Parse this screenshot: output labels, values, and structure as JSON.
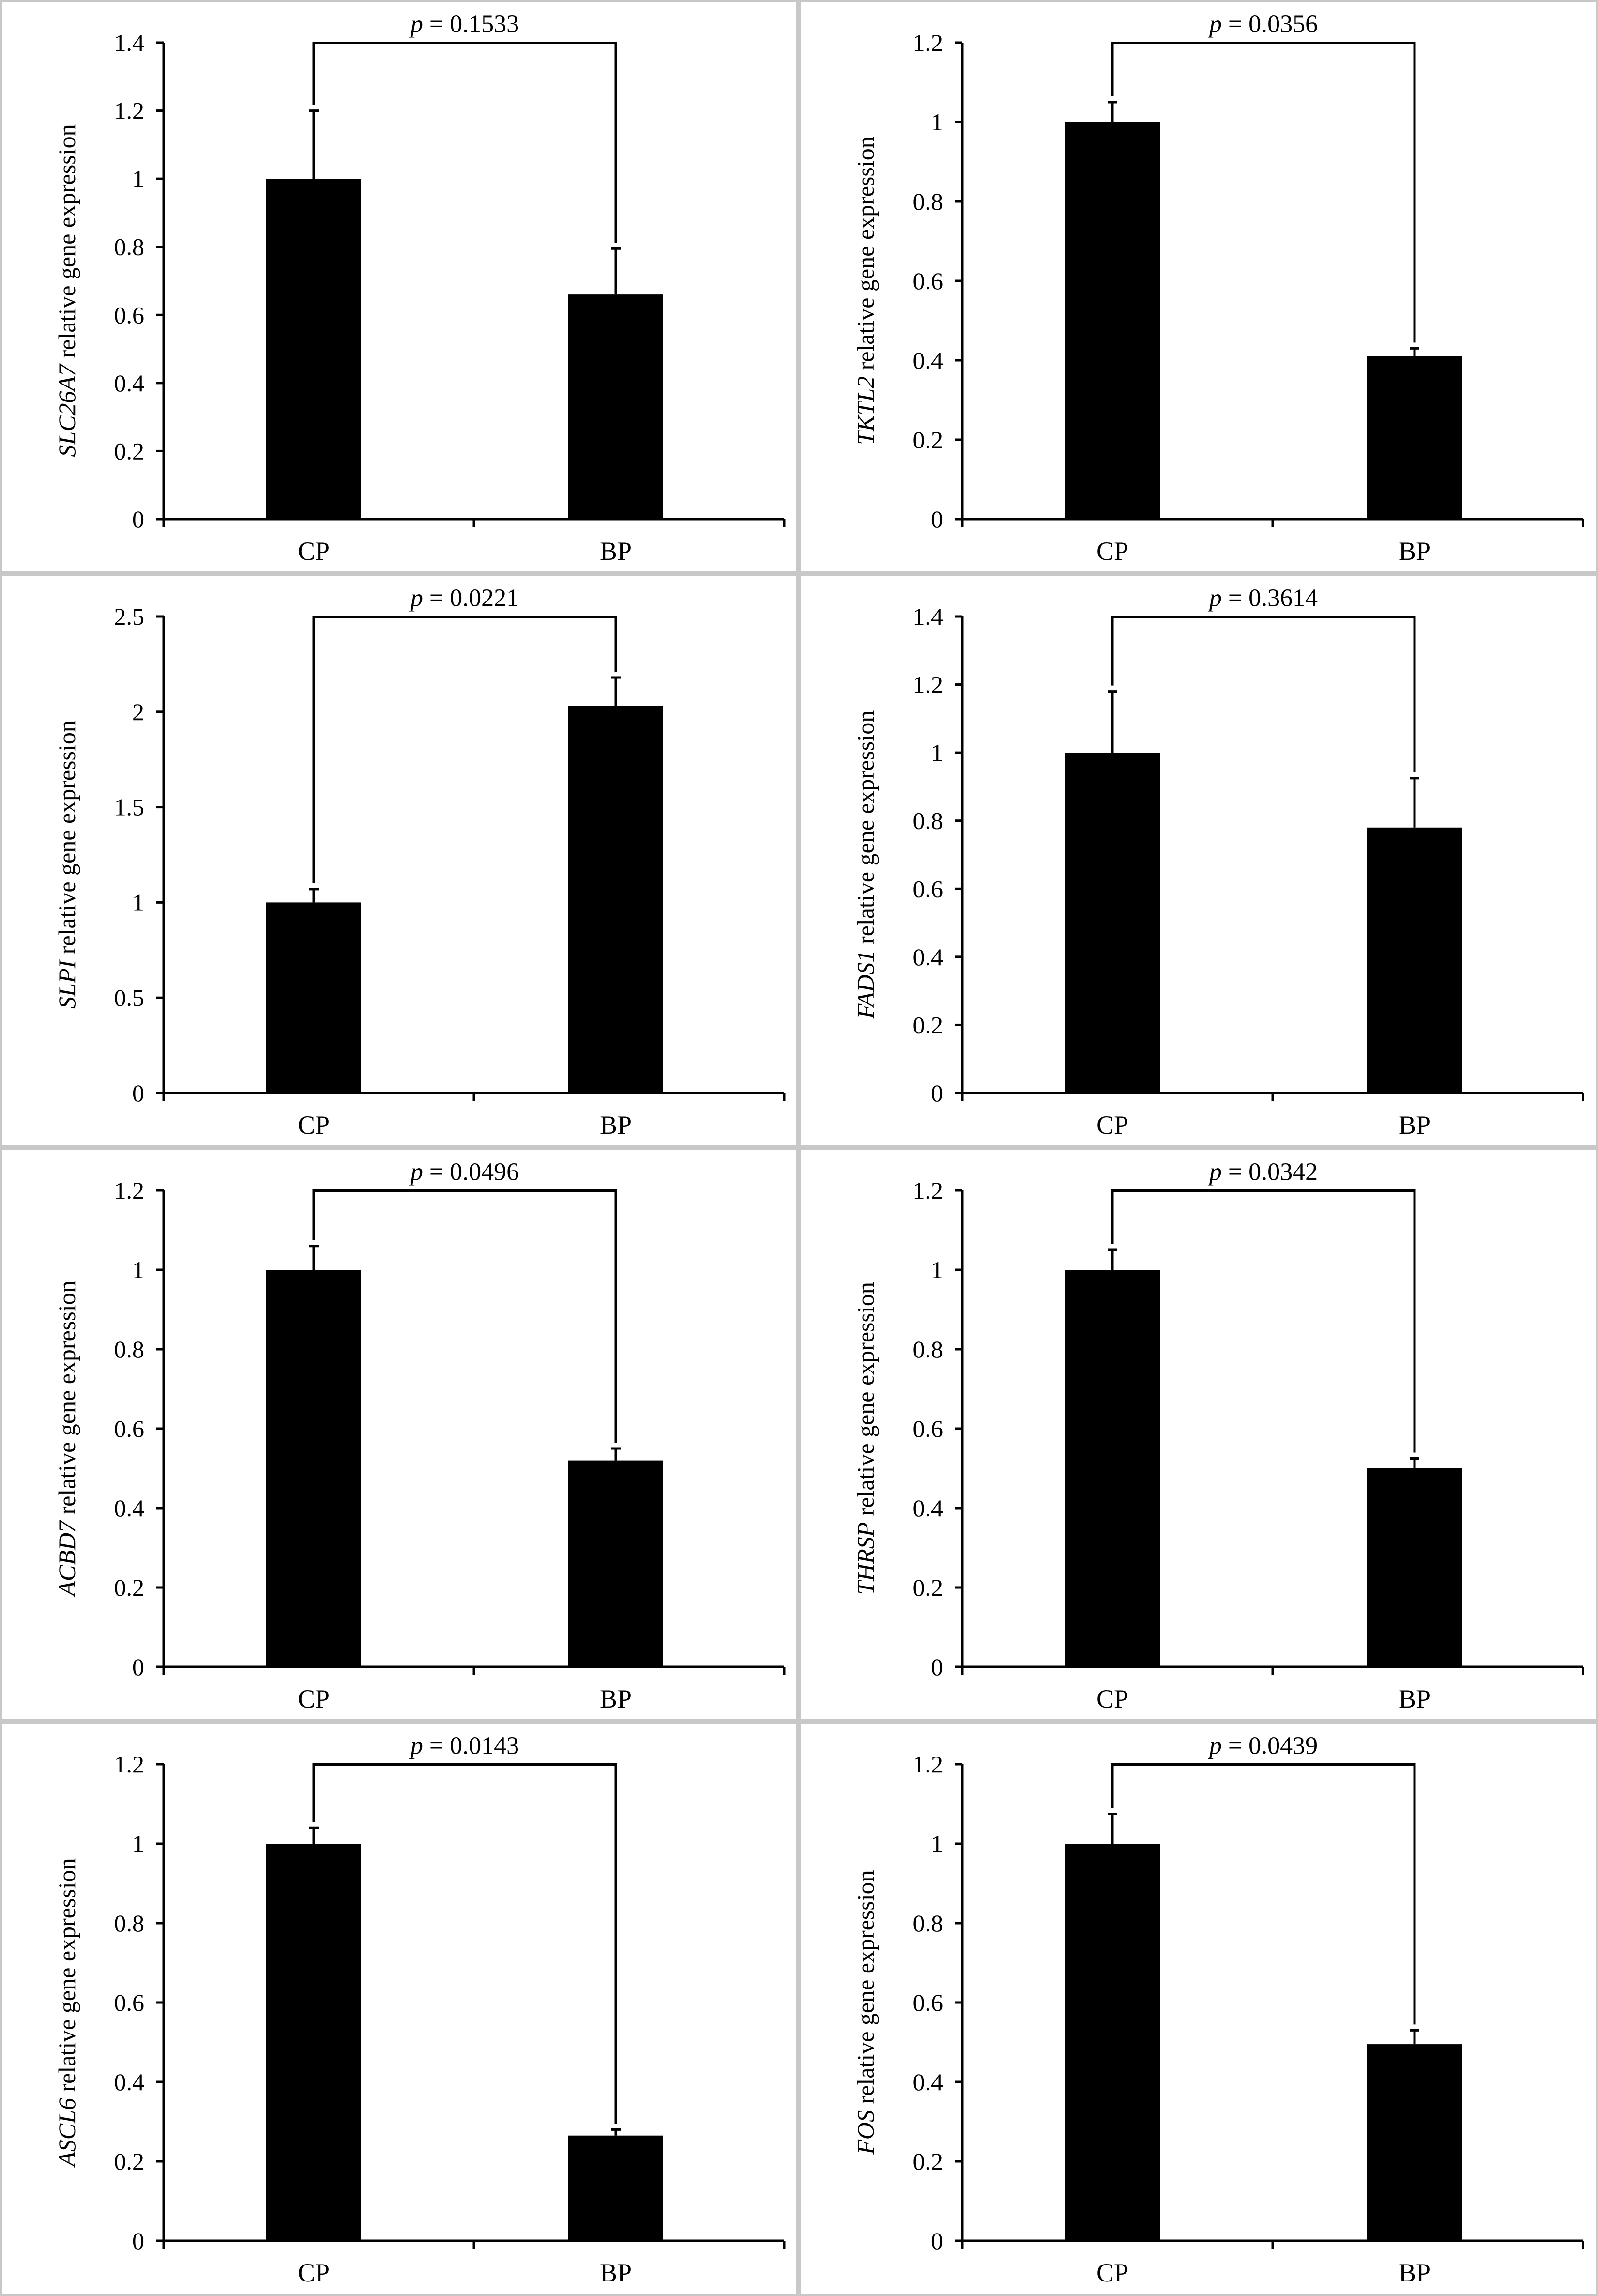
{
  "chart_data": [
    {
      "type": "bar",
      "gene": "SLC26A7",
      "ylabel_suffix": " relative gene expression",
      "categories": [
        "CP",
        "BP"
      ],
      "values": [
        1.0,
        0.66
      ],
      "errors": [
        0.2,
        0.135
      ],
      "ylim": [
        0,
        1.4
      ],
      "yticks": [
        "0",
        "0.2",
        "0.4",
        "0.6",
        "0.8",
        "1",
        "1.2",
        "1.4"
      ],
      "p_label": "p",
      "p_value": " = 0.1533"
    },
    {
      "type": "bar",
      "gene": "TKTL2",
      "ylabel_suffix": " relative gene expression",
      "categories": [
        "CP",
        "BP"
      ],
      "values": [
        1.0,
        0.41
      ],
      "errors": [
        0.05,
        0.02
      ],
      "ylim": [
        0,
        1.2
      ],
      "yticks": [
        "0",
        "0.2",
        "0.4",
        "0.6",
        "0.8",
        "1",
        "1.2"
      ],
      "p_label": "p",
      "p_value": " = 0.0356"
    },
    {
      "type": "bar",
      "gene": "SLPI",
      "ylabel_suffix": " relative gene expression",
      "categories": [
        "CP",
        "BP"
      ],
      "values": [
        1.0,
        2.03
      ],
      "errors": [
        0.07,
        0.15
      ],
      "ylim": [
        0,
        2.5
      ],
      "yticks": [
        "0",
        "0.5",
        "1",
        "1.5",
        "2",
        "2.5"
      ],
      "p_label": "p",
      "p_value": " = 0.0221"
    },
    {
      "type": "bar",
      "gene": "FADS1",
      "ylabel_suffix": " relative gene expression",
      "categories": [
        "CP",
        "BP"
      ],
      "values": [
        1.0,
        0.78
      ],
      "errors": [
        0.18,
        0.145
      ],
      "ylim": [
        0,
        1.4
      ],
      "yticks": [
        "0",
        "0.2",
        "0.4",
        "0.6",
        "0.8",
        "1",
        "1.2",
        "1.4"
      ],
      "p_label": "p",
      "p_value": " = 0.3614"
    },
    {
      "type": "bar",
      "gene": "ACBD7",
      "ylabel_suffix": " relative gene expression",
      "categories": [
        "CP",
        "BP"
      ],
      "values": [
        1.0,
        0.52
      ],
      "errors": [
        0.06,
        0.03
      ],
      "ylim": [
        0,
        1.2
      ],
      "yticks": [
        "0",
        "0.2",
        "0.4",
        "0.6",
        "0.8",
        "1",
        "1.2"
      ],
      "p_label": "p",
      "p_value": " = 0.0496"
    },
    {
      "type": "bar",
      "gene": "THRSP",
      "ylabel_suffix": " relative gene expression",
      "categories": [
        "CP",
        "BP"
      ],
      "values": [
        1.0,
        0.5
      ],
      "errors": [
        0.05,
        0.025
      ],
      "ylim": [
        0,
        1.2
      ],
      "yticks": [
        "0",
        "0.2",
        "0.4",
        "0.6",
        "0.8",
        "1",
        "1.2"
      ],
      "p_label": "p",
      "p_value": " = 0.0342"
    },
    {
      "type": "bar",
      "gene": "ASCL6",
      "ylabel_suffix": " relative gene expression",
      "categories": [
        "CP",
        "BP"
      ],
      "values": [
        1.0,
        0.265
      ],
      "errors": [
        0.04,
        0.015
      ],
      "ylim": [
        0,
        1.2
      ],
      "yticks": [
        "0",
        "0.2",
        "0.4",
        "0.6",
        "0.8",
        "1",
        "1.2"
      ],
      "p_label": "p",
      "p_value": " = 0.0143"
    },
    {
      "type": "bar",
      "gene": "FOS",
      "ylabel_suffix": " relative gene expression",
      "categories": [
        "CP",
        "BP"
      ],
      "values": [
        1.0,
        0.495
      ],
      "errors": [
        0.075,
        0.035
      ],
      "ylim": [
        0,
        1.2
      ],
      "yticks": [
        "0",
        "0.2",
        "0.4",
        "0.6",
        "0.8",
        "1",
        "1.2"
      ],
      "p_label": "p",
      "p_value": " = 0.0439"
    }
  ]
}
